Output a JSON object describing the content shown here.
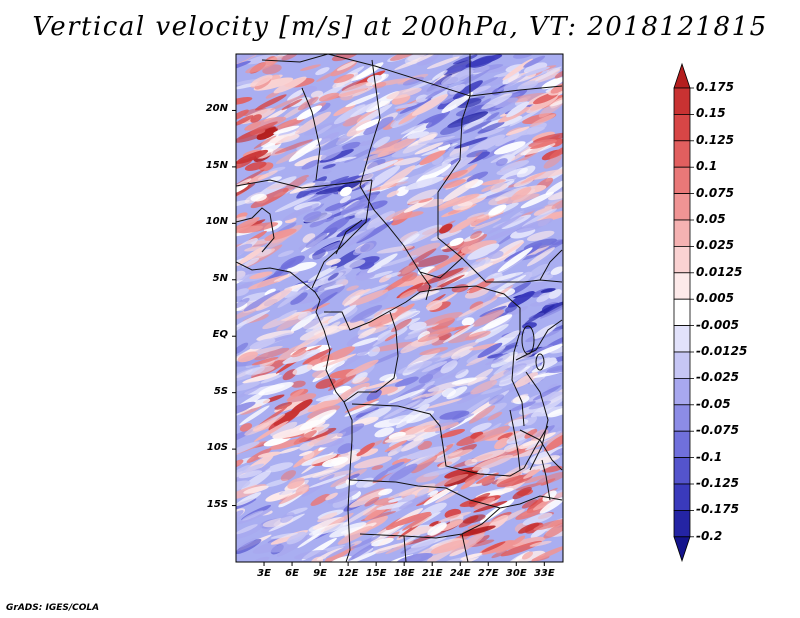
{
  "title": "Vertical velocity [m/s] at 200hPa, VT: 2018121815",
  "credit": "GrADS: IGES/COLA",
  "map": {
    "variable": "Vertical velocity",
    "units": "m/s",
    "level": "200hPa",
    "valid_time": "2018121815",
    "lon_range": [
      0,
      35
    ],
    "lat_range": [
      -20,
      25
    ],
    "lat_labels": [
      "20N",
      "15N",
      "10N",
      "5N",
      "EQ",
      "5S",
      "10S",
      "15S"
    ],
    "lon_labels": [
      "3E",
      "6E",
      "9E",
      "12E",
      "15E",
      "18E",
      "21E",
      "24E",
      "27E",
      "30E",
      "33E"
    ]
  },
  "colorbar": {
    "levels": [
      "0.175",
      "0.15",
      "0.125",
      "0.1",
      "0.075",
      "0.05",
      "0.025",
      "0.0125",
      "0.005",
      "-0.005",
      "-0.0125",
      "-0.025",
      "-0.05",
      "-0.075",
      "-0.1",
      "-0.125",
      "-0.175",
      "-0.2"
    ],
    "colors": [
      "#b41e1e",
      "#c83232",
      "#d74646",
      "#e15f5f",
      "#e97878",
      "#f09494",
      "#f5b2b2",
      "#fad2d2",
      "#fdeaea",
      "#ffffff",
      "#e2e2fb",
      "#c6c6f5",
      "#a8a8ef",
      "#8c8ce6",
      "#7070dc",
      "#5454cc",
      "#3a3abc",
      "#2424a4",
      "#14148c"
    ]
  }
}
